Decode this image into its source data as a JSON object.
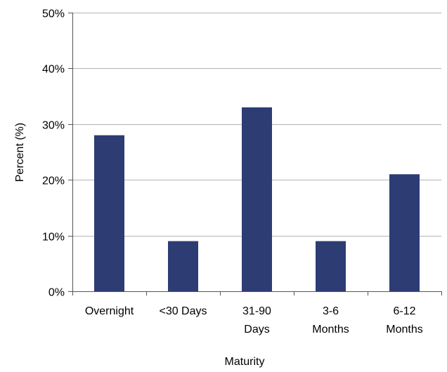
{
  "chart_data": {
    "type": "bar",
    "title": "",
    "xlabel": "Maturity",
    "ylabel": "Percent (%)",
    "categories": [
      [
        "Overnight"
      ],
      [
        "<30 Days"
      ],
      [
        "31-90",
        "Days"
      ],
      [
        "3-6",
        "Months"
      ],
      [
        "6-12",
        "Months"
      ]
    ],
    "values": [
      28,
      9,
      33,
      9,
      21
    ],
    "ylim": [
      0,
      50
    ],
    "yticks": [
      0,
      10,
      20,
      30,
      40,
      50
    ],
    "ytick_labels": [
      "0%",
      "10%",
      "20%",
      "30%",
      "40%",
      "50%"
    ],
    "grid": true,
    "legend": "none",
    "bar_color": "#2d3c73",
    "grid_color": "#b4b4b4",
    "axis_color": "#555555"
  }
}
